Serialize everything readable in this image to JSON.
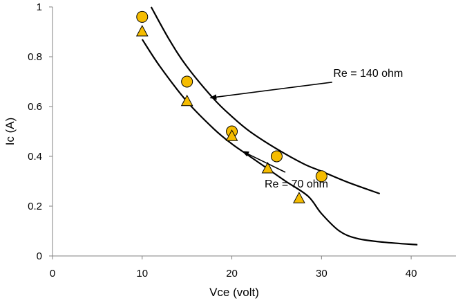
{
  "chart_data": {
    "type": "scatter",
    "title": "",
    "xlabel": "Vce (volt)",
    "ylabel": "Ic (A)",
    "xlim": [
      0,
      45
    ],
    "ylim": [
      0,
      1
    ],
    "xticks": [
      0,
      10,
      20,
      30,
      40
    ],
    "xtick_labels": [
      "0",
      "10",
      "20",
      "30",
      "40"
    ],
    "yticks": [
      0,
      0.2,
      0.4,
      0.6,
      0.8,
      1
    ],
    "ytick_labels": [
      "0",
      "0.2",
      "0.4",
      "0.6",
      "0.8",
      "1"
    ],
    "grid": false,
    "legend": "none",
    "series": [
      {
        "marker": "circle",
        "color": "#F5BC00",
        "edge_color": "#000000",
        "x": [
          10,
          15,
          20,
          25,
          30
        ],
        "y": [
          0.96,
          0.7,
          0.5,
          0.4,
          0.32
        ]
      },
      {
        "marker": "triangle",
        "color": "#F5BC00",
        "edge_color": "#000000",
        "x": [
          10,
          15,
          20,
          24,
          27.5
        ],
        "y": [
          0.9,
          0.62,
          0.48,
          0.35,
          0.23
        ]
      }
    ],
    "curves": [
      {
        "color": "#000000",
        "x": [
          11,
          13,
          15,
          18,
          20,
          22,
          25,
          28,
          30,
          33,
          36.5
        ],
        "y": [
          1.0,
          0.87,
          0.76,
          0.63,
          0.56,
          0.5,
          0.43,
          0.37,
          0.34,
          0.295,
          0.25
        ]
      },
      {
        "color": "#000000",
        "x": [
          10,
          12,
          15,
          18,
          20,
          22,
          24,
          26,
          28.5,
          30,
          32,
          34,
          37,
          40.7
        ],
        "y": [
          0.87,
          0.76,
          0.62,
          0.51,
          0.45,
          0.4,
          0.35,
          0.3,
          0.24,
          0.17,
          0.1,
          0.07,
          0.055,
          0.045
        ]
      }
    ],
    "annotations": [
      {
        "text": "Re = 140 ohm",
        "x": 35.2,
        "y": 0.72,
        "arrow_to": [
          17.6,
          0.635
        ]
      },
      {
        "text": "Re = 70 ohm",
        "x": 27.2,
        "y": 0.275,
        "arrow_to": [
          21.2,
          0.42
        ]
      }
    ]
  }
}
